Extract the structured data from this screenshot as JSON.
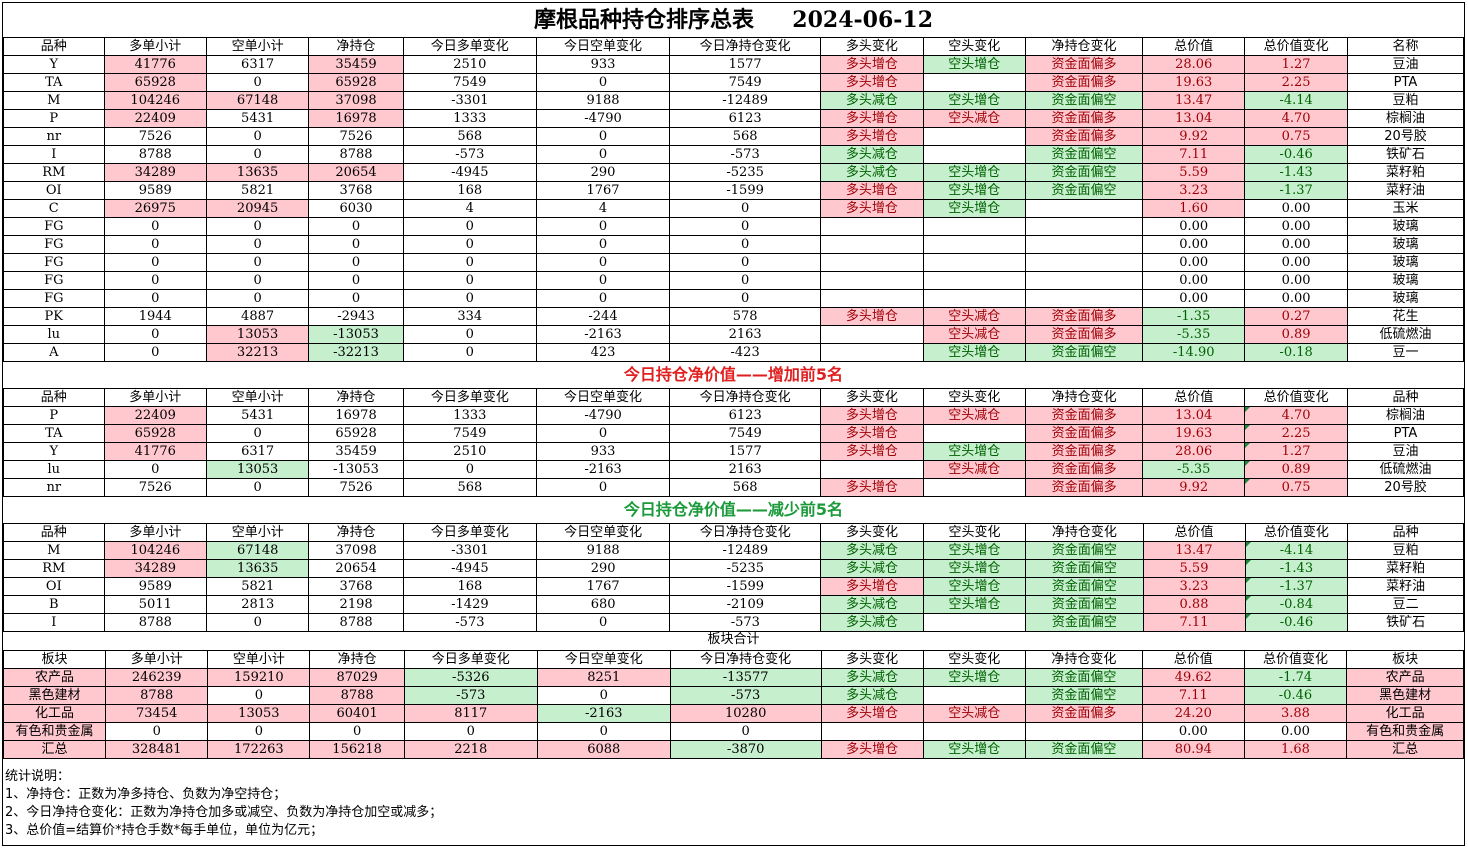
{
  "title": "摩根品种持仓排序总表     2024-06-12",
  "headers": [
    "品种",
    "多单小计",
    "空单小计",
    "净持仓",
    "今日多单变化",
    "今日空单变化",
    "今日净持仓变化",
    "多头变化",
    "空头变化",
    "净持仓变化",
    "总价值",
    "总价值变化",
    "名称"
  ],
  "main_rows": [
    [
      "Y",
      "41776",
      "6317",
      "35459",
      "2510",
      "933",
      "1577",
      "多头增仓",
      "空头增仓",
      "资金面偏多",
      "28.06",
      "1.27",
      "豆油"
    ],
    [
      "TA",
      "65928",
      "0",
      "65928",
      "7549",
      "0",
      "7549",
      "多头增仓",
      "",
      "资金面偏多",
      "19.63",
      "2.25",
      "PTA"
    ],
    [
      "M",
      "104246",
      "67148",
      "37098",
      "-3301",
      "9188",
      "-12489",
      "多头减仓",
      "空头增仓",
      "资金面偏空",
      "13.47",
      "-4.14",
      "豆粕"
    ],
    [
      "P",
      "22409",
      "5431",
      "16978",
      "1333",
      "-4790",
      "6123",
      "多头增仓",
      "空头减仓",
      "资金面偏多",
      "13.04",
      "4.70",
      "棕榈油"
    ],
    [
      "nr",
      "7526",
      "0",
      "7526",
      "568",
      "0",
      "568",
      "多头增仓",
      "",
      "资金面偏多",
      "9.92",
      "0.75",
      "20号胶"
    ],
    [
      "I",
      "8788",
      "0",
      "8788",
      "-573",
      "0",
      "-573",
      "多头减仓",
      "",
      "资金面偏空",
      "7.11",
      "-0.46",
      "铁矿石"
    ],
    [
      "RM",
      "34289",
      "13635",
      "20654",
      "-4945",
      "290",
      "-5235",
      "多头减仓",
      "空头增仓",
      "资金面偏空",
      "5.59",
      "-1.43",
      "菜籽粕"
    ],
    [
      "OI",
      "9589",
      "5821",
      "3768",
      "168",
      "1767",
      "-1599",
      "多头增仓",
      "空头增仓",
      "资金面偏空",
      "3.23",
      "-1.37",
      "菜籽油"
    ],
    [
      "C",
      "26975",
      "20945",
      "6030",
      "4",
      "4",
      "0",
      "多头增仓",
      "空头增仓",
      "",
      "1.60",
      "0.00",
      "玉米"
    ],
    [
      "FG",
      "0",
      "0",
      "0",
      "0",
      "0",
      "0",
      "",
      "",
      "",
      "0.00",
      "0.00",
      "玻璃"
    ],
    [
      "FG",
      "0",
      "0",
      "0",
      "0",
      "0",
      "0",
      "",
      "",
      "",
      "0.00",
      "0.00",
      "玻璃"
    ],
    [
      "FG",
      "0",
      "0",
      "0",
      "0",
      "0",
      "0",
      "",
      "",
      "",
      "0.00",
      "0.00",
      "玻璃"
    ],
    [
      "FG",
      "0",
      "0",
      "0",
      "0",
      "0",
      "0",
      "",
      "",
      "",
      "0.00",
      "0.00",
      "玻璃"
    ],
    [
      "FG",
      "0",
      "0",
      "0",
      "0",
      "0",
      "0",
      "",
      "",
      "",
      "0.00",
      "0.00",
      "玻璃"
    ],
    [
      "PK",
      "1944",
      "4887",
      "-2943",
      "334",
      "-244",
      "578",
      "多头增仓",
      "空头减仓",
      "资金面偏多",
      "-1.35",
      "0.27",
      "花生"
    ],
    [
      "lu",
      "0",
      "13053",
      "-13053",
      "0",
      "-2163",
      "2163",
      "",
      "空头减仓",
      "资金面偏多",
      "-5.35",
      "0.89",
      "低硫燃油"
    ],
    [
      "A",
      "0",
      "32213",
      "-32213",
      "0",
      "423",
      "-423",
      "",
      "空头增仓",
      "资金面偏空",
      "-14.90",
      "-0.18",
      "豆一"
    ]
  ],
  "inc_title": "今日持仓净价值——增加前5名",
  "inc_headers": [
    "品种",
    "多单小计",
    "空单小计",
    "净持仓",
    "今日多单变化",
    "今日空单变化",
    "今日净持仓变化",
    "多头变化",
    "空头变化",
    "净持仓变化",
    "总价值",
    "总价值变化",
    "品种"
  ],
  "inc_rows": [
    [
      "P",
      "22409",
      "5431",
      "16978",
      "1333",
      "-4790",
      "6123",
      "多头增仓",
      "空头减仓",
      "资金面偏多",
      "13.04",
      "4.70",
      "棕榈油"
    ],
    [
      "TA",
      "65928",
      "0",
      "65928",
      "7549",
      "0",
      "7549",
      "多头增仓",
      "",
      "资金面偏多",
      "19.63",
      "2.25",
      "PTA"
    ],
    [
      "Y",
      "41776",
      "6317",
      "35459",
      "2510",
      "933",
      "1577",
      "多头增仓",
      "空头增仓",
      "资金面偏多",
      "28.06",
      "1.27",
      "豆油"
    ],
    [
      "lu",
      "0",
      "13053",
      "-13053",
      "0",
      "-2163",
      "2163",
      "",
      "空头减仓",
      "资金面偏多",
      "-5.35",
      "0.89",
      "低硫燃油"
    ],
    [
      "nr",
      "7526",
      "0",
      "7526",
      "568",
      "0",
      "568",
      "多头增仓",
      "",
      "资金面偏多",
      "9.92",
      "0.75",
      "20号胶"
    ]
  ],
  "dec_title": "今日持仓净价值——减少前5名",
  "dec_rows": [
    [
      "M",
      "104246",
      "67148",
      "37098",
      "-3301",
      "9188",
      "-12489",
      "多头减仓",
      "空头增仓",
      "资金面偏空",
      "13.47",
      "-4.14",
      "豆粕"
    ],
    [
      "RM",
      "34289",
      "13635",
      "20654",
      "-4945",
      "290",
      "-5235",
      "多头减仓",
      "空头增仓",
      "资金面偏空",
      "5.59",
      "-1.43",
      "菜籽粕"
    ],
    [
      "OI",
      "9589",
      "5821",
      "3768",
      "168",
      "1767",
      "-1599",
      "多头增仓",
      "空头增仓",
      "资金面偏空",
      "3.23",
      "-1.37",
      "菜籽油"
    ],
    [
      "B",
      "5011",
      "2813",
      "2198",
      "-1429",
      "680",
      "-2109",
      "多头减仓",
      "空头增仓",
      "资金面偏空",
      "0.88",
      "-0.84",
      "豆二"
    ],
    [
      "I",
      "8788",
      "0",
      "8788",
      "-573",
      "0",
      "-573",
      "多头减仓",
      "",
      "资金面偏空",
      "7.11",
      "-0.46",
      "铁矿石"
    ]
  ],
  "sector_title": "板块合计",
  "sector_headers": [
    "板块",
    "多单小计",
    "空单小计",
    "净持仓",
    "今日多单变化",
    "今日空单变化",
    "今日净持仓变化",
    "多头变化",
    "空头变化",
    "净持仓变化",
    "总价值",
    "总价值变化",
    "板块"
  ],
  "sector_rows": [
    [
      "农产品",
      "246239",
      "159210",
      "87029",
      "-5326",
      "8251",
      "-13577",
      "多头减仓",
      "空头增仓",
      "资金面偏空",
      "49.62",
      "-1.74",
      "农产品"
    ],
    [
      "黑色建材",
      "8788",
      "0",
      "8788",
      "-573",
      "0",
      "-573",
      "多头减仓",
      "",
      "资金面偏空",
      "7.11",
      "-0.46",
      "黑色建材"
    ],
    [
      "化工品",
      "73454",
      "13053",
      "60401",
      "8117",
      "-2163",
      "10280",
      "多头增仓",
      "空头减仓",
      "资金面偏多",
      "24.20",
      "3.88",
      "化工品"
    ],
    [
      "有色和贵金属",
      "0",
      "0",
      "0",
      "0",
      "0",
      "0",
      "",
      "",
      "",
      "0.00",
      "0.00",
      "有色和贵金属"
    ],
    [
      "汇总",
      "328481",
      "172263",
      "156218",
      "2218",
      "6088",
      "-3870",
      "多头增仓",
      "空头增仓",
      "资金面偏空",
      "80.94",
      "1.68",
      "汇总"
    ]
  ],
  "notes": [
    "统计说明：",
    "1、净持仓：正数为净多持仓、负数为净空持仓；",
    "2、今日净持仓变化：正数为净持仓加多或减空、负数为净持仓加空或减多；",
    "3、总价值=结算价*持仓手数*每手单位，单位为亿元；"
  ],
  "colors": {
    "up_fill": "#ffc7ce",
    "up_text": "#9c0006",
    "down_fill": "#c6efce",
    "down_text": "#006100",
    "inc_title": "#e02020",
    "dec_title": "#1a9a3a"
  }
}
